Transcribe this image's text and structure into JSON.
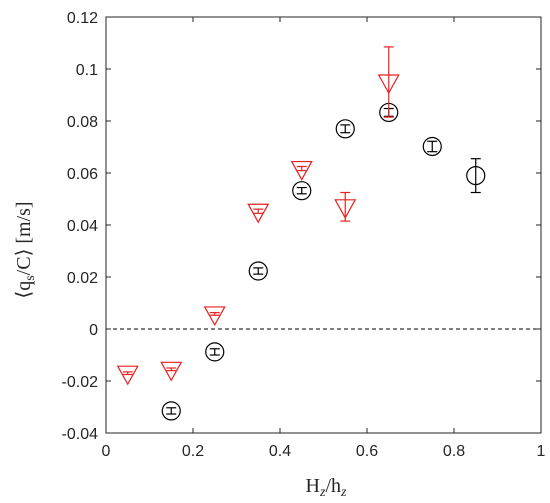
{
  "chart_data": {
    "type": "scatter",
    "xlabel": "H_z/h_z",
    "ylabel": "⟨q_s/C⟩ [m/s]",
    "xlim": [
      0,
      1
    ],
    "ylim": [
      -0.04,
      0.12
    ],
    "xticks": [
      0,
      0.2,
      0.4,
      0.6,
      0.8,
      1
    ],
    "xtick_labels": [
      "0",
      "0.2",
      "0.4",
      "0.6",
      "0.8",
      "1"
    ],
    "yticks": [
      -0.04,
      -0.02,
      0,
      0.02,
      0.04,
      0.06,
      0.08,
      0.1,
      0.12
    ],
    "ytick_labels": [
      "-0.04",
      "-0.02",
      "0",
      "0.02",
      "0.04",
      "0.06",
      "0.08",
      "0.1",
      "0.12"
    ],
    "grid": false,
    "reference_line": {
      "y": 0,
      "style": "dashed",
      "color": "#000000"
    },
    "series": [
      {
        "marker": "circle",
        "color": "#000000",
        "points": [
          {
            "x": 0.15,
            "y": -0.0315,
            "err": 0.0012
          },
          {
            "x": 0.25,
            "y": -0.0088,
            "err": 0.0012
          },
          {
            "x": 0.35,
            "y": 0.0223,
            "err": 0.0012
          },
          {
            "x": 0.45,
            "y": 0.0532,
            "err": 0.0012
          },
          {
            "x": 0.55,
            "y": 0.077,
            "err": 0.0015
          },
          {
            "x": 0.65,
            "y": 0.0833,
            "err": 0.0015
          },
          {
            "x": 0.75,
            "y": 0.0702,
            "err": 0.002
          },
          {
            "x": 0.85,
            "y": 0.059,
            "err": 0.0065
          }
        ]
      },
      {
        "marker": "triangle-down",
        "color": "#e8201f",
        "points": [
          {
            "x": 0.05,
            "y": -0.017,
            "err": 0.0005
          },
          {
            "x": 0.15,
            "y": -0.0155,
            "err": 0.0005
          },
          {
            "x": 0.25,
            "y": 0.0058,
            "err": 0.0005
          },
          {
            "x": 0.35,
            "y": 0.0453,
            "err": 0.0008
          },
          {
            "x": 0.45,
            "y": 0.0617,
            "err": 0.0008
          },
          {
            "x": 0.55,
            "y": 0.047,
            "err": 0.0055
          },
          {
            "x": 0.65,
            "y": 0.095,
            "err": 0.0135
          }
        ]
      }
    ]
  }
}
